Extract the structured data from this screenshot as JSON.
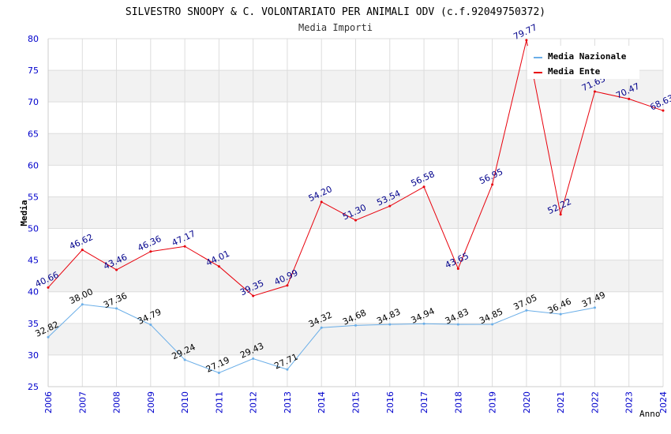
{
  "chart_data": {
    "type": "line",
    "title": "SILVESTRO SNOOPY & C. VOLONTARIATO PER ANIMALI ODV (c.f.92049750372)",
    "subtitle": "Media Importi",
    "xlabel": "Anno",
    "ylabel": "Media",
    "ylim": [
      25,
      80
    ],
    "ytick_step": 5,
    "yticks": [
      "25",
      "30",
      "35",
      "40",
      "45",
      "50",
      "55",
      "60",
      "65",
      "70",
      "75",
      "80"
    ],
    "categories": [
      "2006",
      "2007",
      "2008",
      "2009",
      "2010",
      "2011",
      "2012",
      "2013",
      "2014",
      "2015",
      "2016",
      "2017",
      "2018",
      "2019",
      "2020",
      "2021",
      "2022",
      "2023",
      "2024"
    ],
    "legend_position": "top-right",
    "series": [
      {
        "name": "Media Nazionale",
        "color": "#6aaee8",
        "label_color": "#000000",
        "values": [
          32.82,
          38.0,
          37.36,
          34.79,
          29.24,
          27.19,
          29.43,
          27.71,
          34.32,
          34.68,
          34.83,
          34.94,
          34.83,
          34.85,
          37.05,
          36.46,
          37.49,
          null,
          null
        ],
        "labels": [
          "32.82",
          "38.00",
          "37.36",
          "34.79",
          "29.24",
          "27.19",
          "29.43",
          "27.71",
          "34.32",
          "34.68",
          "34.83",
          "34.94",
          "34.83",
          "34.85",
          "37.05",
          "36.46",
          "37.49",
          "",
          ""
        ]
      },
      {
        "name": "Media Ente",
        "color": "#e8000b",
        "label_color": "#00008b",
        "values": [
          40.66,
          46.62,
          43.46,
          46.36,
          47.17,
          44.01,
          39.35,
          40.99,
          54.2,
          51.3,
          53.54,
          56.58,
          43.65,
          56.95,
          79.77,
          52.22,
          71.65,
          70.47,
          68.63
        ],
        "labels": [
          "40.66",
          "46.62",
          "43.46",
          "46.36",
          "47.17",
          "44.01",
          "39.35",
          "40.99",
          "54.20",
          "51.30",
          "53.54",
          "56.58",
          "43.65",
          "56.95",
          "79.77",
          "52.22",
          "71.65",
          "70.47",
          "68.63"
        ]
      }
    ]
  },
  "colors": {
    "band": "#f2f2f2",
    "grid": "#dddddd",
    "tick_label": "#0000cc",
    "title": "#000000",
    "subtitle": "#333333"
  }
}
